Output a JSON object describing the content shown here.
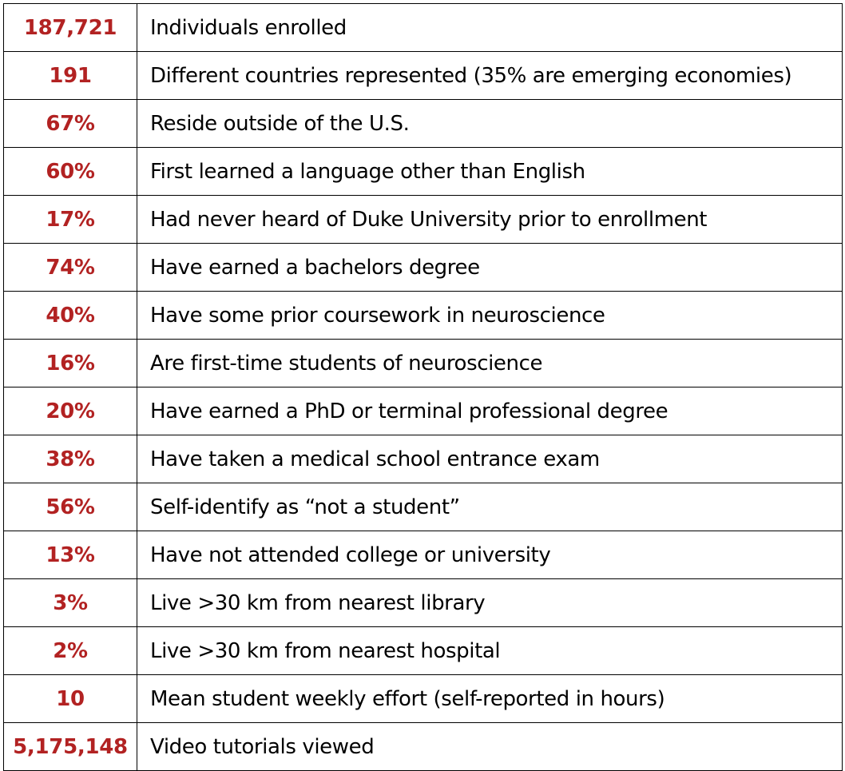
{
  "colors": {
    "value_text": "#b22222",
    "description_text": "#000000",
    "border": "#000000"
  },
  "stats": [
    {
      "value": "187,721",
      "description": "Individuals enrolled"
    },
    {
      "value": "191",
      "description": "Different countries represented (35% are emerging economies)"
    },
    {
      "value": "67%",
      "description": "Reside outside of the U.S."
    },
    {
      "value": "60%",
      "description": "First learned a language other than English"
    },
    {
      "value": "17%",
      "description": "Had never heard of Duke University prior to enrollment"
    },
    {
      "value": "74%",
      "description": "Have earned a bachelors degree"
    },
    {
      "value": "40%",
      "description": "Have some prior coursework in neuroscience"
    },
    {
      "value": "16%",
      "description": "Are first-time students of neuroscience"
    },
    {
      "value": "20%",
      "description": "Have earned a PhD or terminal professional degree"
    },
    {
      "value": "38%",
      "description": "Have taken a medical school entrance exam"
    },
    {
      "value": "56%",
      "description": "Self-identify as “not a student”"
    },
    {
      "value": "13%",
      "description": "Have not attended college or university"
    },
    {
      "value": "3%",
      "description": "Live >30 km from nearest library"
    },
    {
      "value": "2%",
      "description": "Live >30 km from nearest hospital"
    },
    {
      "value": "10",
      "description": "Mean student weekly effort (self-reported in hours)"
    },
    {
      "value": "5,175,148",
      "description": "Video tutorials viewed"
    }
  ]
}
